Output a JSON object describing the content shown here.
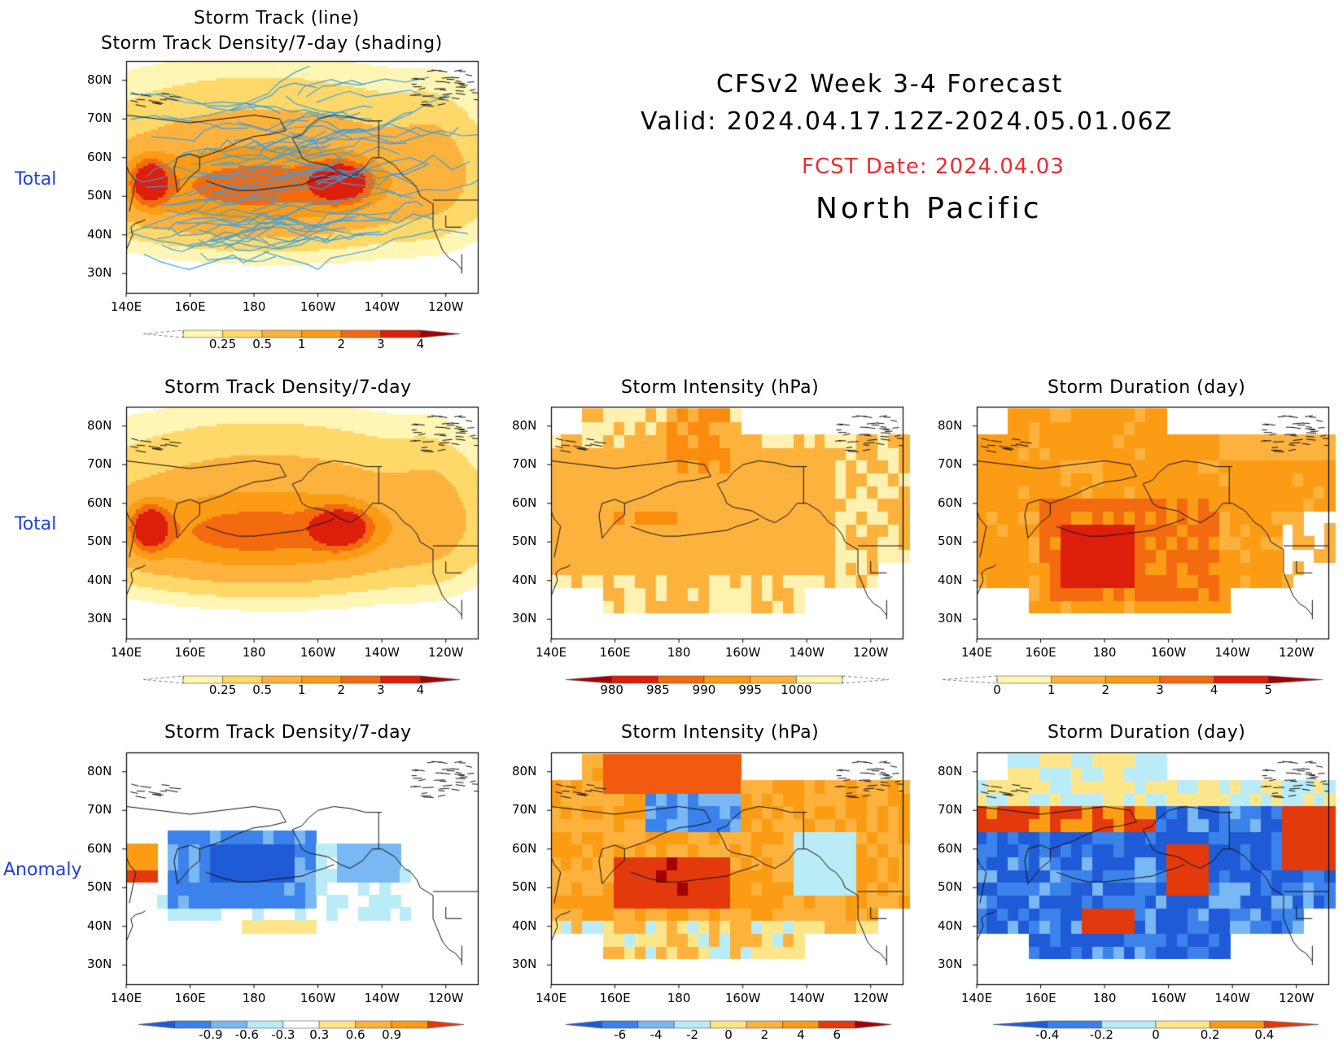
{
  "header": {
    "line1": "CFSv2 Week 3-4 Forecast",
    "line2": "Valid: 2024.04.17.12Z-2024.05.01.06Z",
    "fcst": "FCST Date: 2024.04.03",
    "region": "North Pacific",
    "fcst_color": "#ee2b2b"
  },
  "row_labels": {
    "top": "Total",
    "mid": "Total",
    "bottom": "Anomaly"
  },
  "axes": {
    "lon": [
      "140E",
      "160E",
      "180",
      "160W",
      "140W",
      "120W"
    ],
    "lat": [
      "80N",
      "70N",
      "60N",
      "50N",
      "40N",
      "30N"
    ]
  },
  "panels": [
    {
      "id": "track",
      "title1": "Storm Track (line)",
      "title2": "Storm Track Density/7-day (shading)",
      "field": "density",
      "tracks": true
    },
    {
      "id": "density",
      "title1": "Storm Track Density/7-day",
      "field": "density"
    },
    {
      "id": "intensity",
      "title1": "Storm Intensity (hPa)",
      "field": "intensity"
    },
    {
      "id": "duration",
      "title1": "Storm Duration (day)",
      "field": "duration"
    },
    {
      "id": "density_anom",
      "title1": "Storm Track Density/7-day",
      "field": "density_anom"
    },
    {
      "id": "intensity_anom",
      "title1": "Storm Intensity (hPa)",
      "field": "intensity_anom"
    },
    {
      "id": "duration_anom",
      "title1": "Storm Duration (day)",
      "field": "duration_anom"
    }
  ],
  "colorbars": {
    "density": {
      "labels": [
        "0.25",
        "0.5",
        "1",
        "2",
        "3",
        "4"
      ],
      "colors": [
        "#fff5b5",
        "#fed869",
        "#fdb23e",
        "#fb9c14",
        "#f36a0f",
        "#dc1e0b",
        "#a50000"
      ],
      "under": "dashed"
    },
    "intensity": {
      "labels": [
        "980",
        "985",
        "990",
        "995",
        "1000"
      ],
      "colors": [
        "#a50000",
        "#dc1e0b",
        "#f36a0f",
        "#fb9c14",
        "#fdb23e",
        "#fff5b5"
      ],
      "over": "dashed"
    },
    "duration": {
      "labels": [
        "0",
        "1",
        "2",
        "3",
        "4",
        "5"
      ],
      "colors": [
        "#fff5b5",
        "#fdb23e",
        "#fb9c14",
        "#f36a0f",
        "#dc1e0b",
        "#a50000"
      ],
      "under": "dashed"
    },
    "density_anom": {
      "labels": [
        "-0.9",
        "-0.6",
        "-0.3",
        "0.3",
        "0.6",
        "0.9"
      ],
      "colors": [
        "#1f5bd6",
        "#3b82ea",
        "#7ab8f4",
        "#b9ecf6",
        "#ffffff",
        "#fde68a",
        "#fdb23e",
        "#fb9c14",
        "#e23a0c"
      ]
    },
    "intensity_anom": {
      "labels": [
        "-6",
        "-4",
        "-2",
        "0",
        "2",
        "4",
        "6"
      ],
      "colors": [
        "#1f5bd6",
        "#3b82ea",
        "#7ab8f4",
        "#b9ecf6",
        "#fde68a",
        "#fdb23e",
        "#fb9c14",
        "#e23a0c",
        "#a50000"
      ]
    },
    "duration_anom": {
      "labels": [
        "-0.4",
        "-0.2",
        "0",
        "0.2",
        "0.4"
      ],
      "colors": [
        "#1f5bd6",
        "#3b82ea",
        "#b9ecf6",
        "#fde68a",
        "#fb9c14",
        "#e23a0c"
      ]
    }
  },
  "legend_note": "Colour bar labels as printed in the figure"
}
